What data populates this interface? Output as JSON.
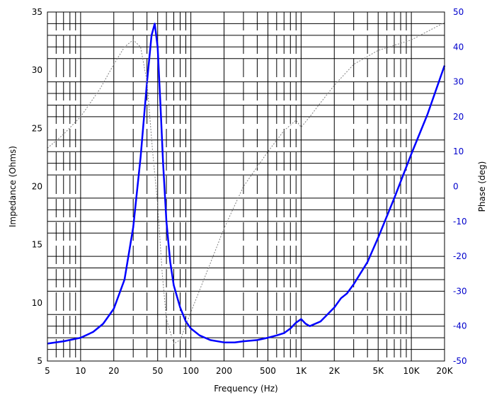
{
  "chart_data": {
    "type": "line",
    "title": "",
    "xlabel": "Frequency (Hz)",
    "ylabel": "Impedance (Ohms)",
    "y2label": "Phase (deg)",
    "xscale": "log",
    "xlim": [
      5,
      20000
    ],
    "ylim": [
      5,
      35
    ],
    "y2lim": [
      -50,
      50
    ],
    "grid": true,
    "x_ticks": [
      {
        "value": 5,
        "label": "5"
      },
      {
        "value": 10,
        "label": "10"
      },
      {
        "value": 20,
        "label": "20"
      },
      {
        "value": 50,
        "label": "50"
      },
      {
        "value": 100,
        "label": "100"
      },
      {
        "value": 200,
        "label": "200"
      },
      {
        "value": 500,
        "label": "500"
      },
      {
        "value": 1000,
        "label": "1K"
      },
      {
        "value": 2000,
        "label": "2K"
      },
      {
        "value": 5000,
        "label": "5K"
      },
      {
        "value": 10000,
        "label": "10K"
      },
      {
        "value": 20000,
        "label": "20K"
      }
    ],
    "y_ticks": [
      "5",
      "10",
      "15",
      "20",
      "25",
      "30",
      "35"
    ],
    "y2_ticks": [
      "-50",
      "-40",
      "-30",
      "-20",
      "-10",
      "0",
      "10",
      "20",
      "30",
      "40",
      "50"
    ],
    "series": [
      {
        "axis": "left",
        "color": "#0000ff",
        "style": "solid",
        "x": [
          5,
          7,
          10,
          13,
          16,
          20,
          25,
          30,
          35,
          40,
          44,
          47,
          50,
          53,
          56,
          60,
          65,
          70,
          80,
          90,
          100,
          120,
          150,
          200,
          250,
          300,
          400,
          500,
          600,
          700,
          800,
          900,
          1000,
          1100,
          1200,
          1500,
          2000,
          2300,
          2600,
          3000,
          4000,
          5000,
          7000,
          10000,
          14000,
          20000
        ],
        "y": [
          6.5,
          6.7,
          7.0,
          7.5,
          8.2,
          9.5,
          12.0,
          16.5,
          22.5,
          29.0,
          33.0,
          34.0,
          32.0,
          27.0,
          22.0,
          17.0,
          13.5,
          11.5,
          9.6,
          8.4,
          7.8,
          7.2,
          6.8,
          6.6,
          6.6,
          6.7,
          6.8,
          7.0,
          7.2,
          7.4,
          7.8,
          8.3,
          8.6,
          8.2,
          8.0,
          8.4,
          9.6,
          10.4,
          10.8,
          11.6,
          13.5,
          15.6,
          19.0,
          22.8,
          26.2,
          30.4
        ]
      },
      {
        "axis": "right",
        "color": "#808080",
        "style": "dotted",
        "x": [
          5,
          7,
          10,
          15,
          20,
          25,
          30,
          35,
          40,
          45,
          50,
          55,
          60,
          70,
          80,
          100,
          150,
          200,
          300,
          500,
          700,
          900,
          1000,
          1200,
          1500,
          2000,
          3000,
          5000,
          10000,
          20000
        ],
        "y": [
          11,
          15,
          20,
          28,
          35,
          40,
          42,
          40,
          30,
          10,
          -5,
          -25,
          -38,
          -45,
          -44,
          -36,
          -22,
          -12,
          0,
          10,
          16,
          19,
          17,
          20,
          24,
          29,
          35,
          39,
          42,
          47
        ]
      }
    ]
  }
}
